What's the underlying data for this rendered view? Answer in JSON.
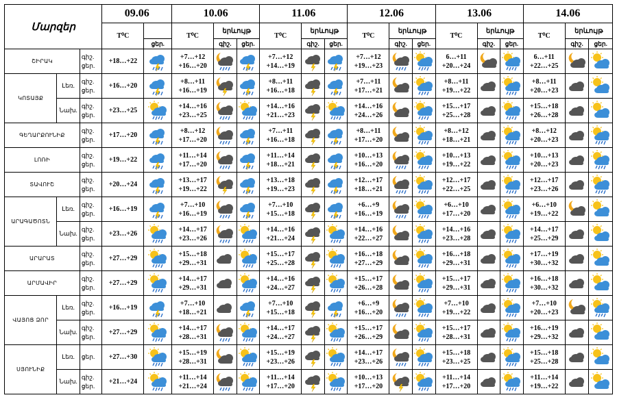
{
  "header": {
    "region_label": "Մարզեր",
    "temp_label": "T⁰C",
    "phenom_label": "երևույթ",
    "day_abbr": "ցեր.",
    "night_abbr": "գիշ.",
    "dates": [
      "09.06",
      "10.06",
      "11.06",
      "12.06",
      "13.06",
      "14.06"
    ]
  },
  "row_labels": {
    "night": "գիշ.",
    "day": "ցեր."
  },
  "rows": [
    {
      "region": "ՇԻՐԱԿ",
      "zone": "",
      "span": 1,
      "night_label": "գիշ.",
      "day_label": "ցեր.",
      "d0": "+18…+22",
      "days": [
        {
          "night": "+7…+12",
          "day": "+16…+20",
          "icons": [
            "moon-cloud-rain",
            "cloud-rain-thunder"
          ]
        },
        {
          "night": "+7…+12",
          "day": "+14…+19",
          "icons": [
            "cloud-thunder",
            "cloud-rain-thunder"
          ]
        },
        {
          "night": "+7…+12",
          "day": "+19…+23",
          "icons": [
            "moon-cloud-rain",
            "sun-cloud-rain"
          ]
        },
        {
          "night": "6…+11",
          "day": "+20…+24",
          "icons": [
            "moon-cloud",
            "sun-cloud-rain"
          ]
        },
        {
          "night": "6…+11",
          "day": "+22…+25",
          "icons": [
            "moon-cloud",
            "sun-cloud"
          ]
        }
      ]
    },
    {
      "region": "ԿՈՏԱՅՔ",
      "zone": "Լեռ.",
      "span": 2,
      "night_label": "գիշ.",
      "day_label": "ցեր.",
      "d0": "+16…+20",
      "days": [
        {
          "night": "+8…+11",
          "day": "+16…+19",
          "icons": [
            "moon-cloud-thunder",
            "cloud-rain-thunder"
          ]
        },
        {
          "night": "+8…+11",
          "day": "+16…+18",
          "icons": [
            "cloud-thunder",
            "cloud-rain-thunder"
          ]
        },
        {
          "night": "+7…+11",
          "day": "+17…+21",
          "icons": [
            "moon-cloud",
            "sun-cloud-rain"
          ]
        },
        {
          "night": "+8…+11",
          "day": "+19…+22",
          "icons": [
            "cloud-dark",
            "sun-cloud-rain"
          ]
        },
        {
          "night": "+8…+11",
          "day": "+20…+23",
          "icons": [
            "cloud-dark",
            "sun-cloud"
          ]
        }
      ]
    },
    {
      "region": "",
      "zone": "Նախ.",
      "span": 0,
      "night_label": "գիշ.",
      "day_label": "ցեր.",
      "d0": "+23…+25",
      "days": [
        {
          "night": "+14…+16",
          "day": "+23…+25",
          "icons": [
            "moon-cloud-rain",
            "sun-cloud-rain"
          ]
        },
        {
          "night": "+14…+16",
          "day": "+21…+23",
          "icons": [
            "cloud-thunder",
            "sun-cloud-rain"
          ]
        },
        {
          "night": "+14…+16",
          "day": "+24…+26",
          "icons": [
            "moon-cloud",
            "sun-cloud-rain"
          ]
        },
        {
          "night": "+15…+17",
          "day": "+25…+28",
          "icons": [
            "cloud-dark",
            "sun-cloud-rain"
          ]
        },
        {
          "night": "+15…+18",
          "day": "+26…+28",
          "icons": [
            "cloud-dark",
            "sun-cloud"
          ]
        }
      ]
    },
    {
      "region": "ԳԵՂԱՐՔՈՒՆԻՔ",
      "zone": "",
      "span": 1,
      "night_label": "գիշ.",
      "day_label": "ցեր.",
      "d0": "+17…+20",
      "days": [
        {
          "night": "+8…+12",
          "day": "+17…+20",
          "icons": [
            "moon-cloud-rain",
            "cloud-rain-thunder"
          ]
        },
        {
          "night": "+7…+11",
          "day": "+16…+18",
          "icons": [
            "cloud-thunder",
            "cloud-rain-thunder"
          ]
        },
        {
          "night": "+8…+11",
          "day": "+17…+20",
          "icons": [
            "moon-cloud",
            "sun-cloud-rain"
          ]
        },
        {
          "night": "+8…+12",
          "day": "+18…+21",
          "icons": [
            "cloud-dark",
            "sun-cloud-rain"
          ]
        },
        {
          "night": "+8…+12",
          "day": "+20…+23",
          "icons": [
            "cloud-dark",
            "sun-cloud-rain"
          ]
        }
      ]
    },
    {
      "region": "ԼՈՌԻ",
      "zone": "",
      "span": 1,
      "night_label": "գիշ.",
      "day_label": "ցեր.",
      "d0": "+19…+22",
      "days": [
        {
          "night": "+11…+14",
          "day": "+17…+20",
          "icons": [
            "moon-cloud-rain",
            "cloud-rain-thunder"
          ]
        },
        {
          "night": "+11…+14",
          "day": "+18…+21",
          "icons": [
            "cloud-thunder",
            "cloud-rain-thunder"
          ]
        },
        {
          "night": "+10…+13",
          "day": "+16…+20",
          "icons": [
            "moon-cloud-rain",
            "sun-cloud-rain"
          ]
        },
        {
          "night": "+10…+13",
          "day": "+19…+22",
          "icons": [
            "cloud-dark",
            "sun-cloud-rain"
          ]
        },
        {
          "night": "+10…+13",
          "day": "+20…+23",
          "icons": [
            "cloud-dark",
            "sun-cloud-rain"
          ]
        }
      ]
    },
    {
      "region": "ՏԱՎՈՒՇ",
      "zone": "",
      "span": 1,
      "night_label": "գիշ.",
      "day_label": "ցեր.",
      "d0": "+20…+24",
      "days": [
        {
          "night": "+13…+17",
          "day": "+19…+22",
          "icons": [
            "moon-cloud-thunder",
            "cloud-rain-thunder"
          ]
        },
        {
          "night": "+13…+18",
          "day": "+19…+23",
          "icons": [
            "cloud-thunder",
            "cloud-rain-thunder"
          ]
        },
        {
          "night": "+12…+17",
          "day": "+18…+21",
          "icons": [
            "moon-cloud-rain",
            "sun-cloud-rain"
          ]
        },
        {
          "night": "+12…+17",
          "day": "+22…+25",
          "icons": [
            "cloud-dark",
            "sun-cloud-rain"
          ]
        },
        {
          "night": "+12…+17",
          "day": "+23…+26",
          "icons": [
            "cloud-dark",
            "sun-cloud-rain"
          ]
        }
      ]
    },
    {
      "region": "ԱՐԱԳԱԾՈՏՆ",
      "zone": "Լեռ.",
      "span": 2,
      "night_label": "գիշ.",
      "day_label": "ցեր.",
      "d0": "+16…+19",
      "days": [
        {
          "night": "+7…+10",
          "day": "+16…+19",
          "icons": [
            "moon-cloud-rain",
            "cloud-rain-thunder"
          ]
        },
        {
          "night": "+7…+10",
          "day": "+15…+18",
          "icons": [
            "cloud-thunder",
            "cloud-rain-thunder"
          ]
        },
        {
          "night": "+6…+9",
          "day": "+16…+19",
          "icons": [
            "moon-cloud-rain",
            "sun-cloud-rain"
          ]
        },
        {
          "night": "+6…+10",
          "day": "+17…+20",
          "icons": [
            "cloud-dark",
            "sun-cloud-rain"
          ]
        },
        {
          "night": "+6…+10",
          "day": "+19…+22",
          "icons": [
            "moon-cloud",
            "sun-cloud"
          ]
        }
      ]
    },
    {
      "region": "",
      "zone": "Նախ.",
      "span": 0,
      "night_label": "գիշ.",
      "day_label": "ցեր.",
      "d0": "+23…+26",
      "days": [
        {
          "night": "+14…+17",
          "day": "+23…+26",
          "icons": [
            "moon-cloud-rain",
            "sun-cloud-rain"
          ]
        },
        {
          "night": "+14…+16",
          "day": "+21…+24",
          "icons": [
            "cloud-thunder",
            "sun-cloud-rain"
          ]
        },
        {
          "night": "+14…+16",
          "day": "+22…+27",
          "icons": [
            "moon-cloud",
            "sun-cloud-rain"
          ]
        },
        {
          "night": "+14…+16",
          "day": "+23…+28",
          "icons": [
            "cloud-dark",
            "sun-cloud-rain"
          ]
        },
        {
          "night": "+14…+17",
          "day": "+25…+29",
          "icons": [
            "cloud-dark",
            "sun-cloud"
          ]
        }
      ]
    },
    {
      "region": "ԱՐԱՐԱՏ",
      "zone": "",
      "span": 1,
      "night_label": "գիշ.",
      "day_label": "ցեր.",
      "d0": "+27…+29",
      "days": [
        {
          "night": "+15…+18",
          "day": "+29…+31",
          "icons": [
            "cloud-dark",
            "sun-cloud-rain"
          ]
        },
        {
          "night": "+15…+17",
          "day": "+25…+28",
          "icons": [
            "cloud-thunder",
            "sun-cloud-rain"
          ]
        },
        {
          "night": "+16…+18",
          "day": "+27…+29",
          "icons": [
            "moon-cloud",
            "sun-cloud-rain"
          ]
        },
        {
          "night": "+16…+18",
          "day": "+29…+31",
          "icons": [
            "cloud-dark",
            "sun-cloud-rain"
          ]
        },
        {
          "night": "+17…+19",
          "day": "+30…+32",
          "icons": [
            "cloud-dark",
            "sun-cloud"
          ]
        }
      ]
    },
    {
      "region": "ԱՐՄԱՎԻՐ",
      "zone": "",
      "span": 1,
      "night_label": "գիշ.",
      "day_label": "ցեր.",
      "d0": "+27…+29",
      "days": [
        {
          "night": "+14…+17",
          "day": "+29…+31",
          "icons": [
            "cloud-dark",
            "sun-cloud-rain"
          ]
        },
        {
          "night": "+14…+16",
          "day": "+24…+27",
          "icons": [
            "cloud-thunder",
            "sun-cloud-rain"
          ]
        },
        {
          "night": "+15…+17",
          "day": "+26…+28",
          "icons": [
            "moon-cloud",
            "sun-cloud-rain"
          ]
        },
        {
          "night": "+15…+17",
          "day": "+29…+31",
          "icons": [
            "cloud-dark",
            "sun-cloud-rain"
          ]
        },
        {
          "night": "+16…+18",
          "day": "+30…+32",
          "icons": [
            "cloud-dark",
            "sun-cloud"
          ]
        }
      ]
    },
    {
      "region": "ՎԱՅՈՑ ՁՈՐ",
      "zone": "Լեռ.",
      "span": 2,
      "night_label": "գիշ.",
      "day_label": "ցեր.",
      "d0": "+16…+19",
      "days": [
        {
          "night": "+7…+10",
          "day": "+18…+21",
          "icons": [
            "cloud-dark",
            "cloud-rain-thunder"
          ]
        },
        {
          "night": "+7…+10",
          "day": "+15…+18",
          "icons": [
            "cloud-thunder",
            "cloud-rain-thunder"
          ]
        },
        {
          "night": "+6…+9",
          "day": "+16…+20",
          "icons": [
            "moon-cloud-rain",
            "sun-cloud-rain"
          ]
        },
        {
          "night": "+7…+10",
          "day": "+19…+22",
          "icons": [
            "cloud-dark",
            "sun-cloud-rain"
          ]
        },
        {
          "night": "+7…+10",
          "day": "+20…+23",
          "icons": [
            "moon-cloud",
            "sun-cloud-rain"
          ]
        }
      ]
    },
    {
      "region": "",
      "zone": "Նախ.",
      "span": 0,
      "night_label": "գիշ.",
      "day_label": "ցեր.",
      "d0": "+27…+29",
      "days": [
        {
          "night": "+14…+17",
          "day": "+28…+31",
          "icons": [
            "moon-cloud-rain",
            "sun-cloud-rain"
          ]
        },
        {
          "night": "+14…+17",
          "day": "+24…+27",
          "icons": [
            "cloud-thunder",
            "sun-cloud-rain"
          ]
        },
        {
          "night": "+15…+17",
          "day": "+26…+29",
          "icons": [
            "moon-cloud",
            "sun-cloud-rain"
          ]
        },
        {
          "night": "+15…+17",
          "day": "+28…+31",
          "icons": [
            "cloud-dark",
            "sun-cloud-rain"
          ]
        },
        {
          "night": "+16…+19",
          "day": "+29…+32",
          "icons": [
            "cloud-dark",
            "sun-cloud"
          ]
        }
      ]
    },
    {
      "region": "ՍՅՈՒՆԻՔ",
      "zone": "Լեռ.",
      "span": 2,
      "night_label": "",
      "day_label": "ցեր.",
      "d0": "+27…+30",
      "days": [
        {
          "night": "+15…+19",
          "day": "+28…+31",
          "icons": [
            "moon-cloud",
            "sun-cloud-rain"
          ]
        },
        {
          "night": "+15…+19",
          "day": "+23…+26",
          "icons": [
            "cloud-thunder",
            "sun-cloud-rain"
          ]
        },
        {
          "night": "+14…+17",
          "day": "+23…+26",
          "icons": [
            "moon-cloud-rain",
            "sun-cloud-rain"
          ]
        },
        {
          "night": "+15…+18",
          "day": "+23…+25",
          "icons": [
            "cloud-dark",
            "sun-cloud-rain"
          ]
        },
        {
          "night": "+15…+18",
          "day": "+25…+28",
          "icons": [
            "cloud-dark",
            "sun-cloud"
          ]
        }
      ]
    },
    {
      "region": "",
      "zone": "Նախ.",
      "span": 0,
      "night_label": "գիշ.",
      "day_label": "ցեր.",
      "d0": "+21…+24",
      "days": [
        {
          "night": "+11…+14",
          "day": "+21…+24",
          "icons": [
            "moon-cloud-rain",
            "sun-cloud-rain"
          ]
        },
        {
          "night": "+11…+14",
          "day": "+17…+20",
          "icons": [
            "cloud-thunder",
            "sun-cloud-rain"
          ]
        },
        {
          "night": "+10…+13",
          "day": "+17…+20",
          "icons": [
            "moon-cloud-thunder",
            "sun-cloud-rain"
          ]
        },
        {
          "night": "+11…+14",
          "day": "+17…+20",
          "icons": [
            "cloud-dark",
            "sun-cloud-rain"
          ]
        },
        {
          "night": "+11…+14",
          "day": "+19…+22",
          "icons": [
            "cloud-dark",
            "sun-cloud"
          ]
        }
      ]
    }
  ],
  "colors": {
    "sun": "#f7c21a",
    "moon": "#f0a81c",
    "cloud_dark": "#555555",
    "cloud_blue": "#3c8fd8",
    "rain": "#2a6fc9",
    "lightning": "#ffcc00"
  }
}
